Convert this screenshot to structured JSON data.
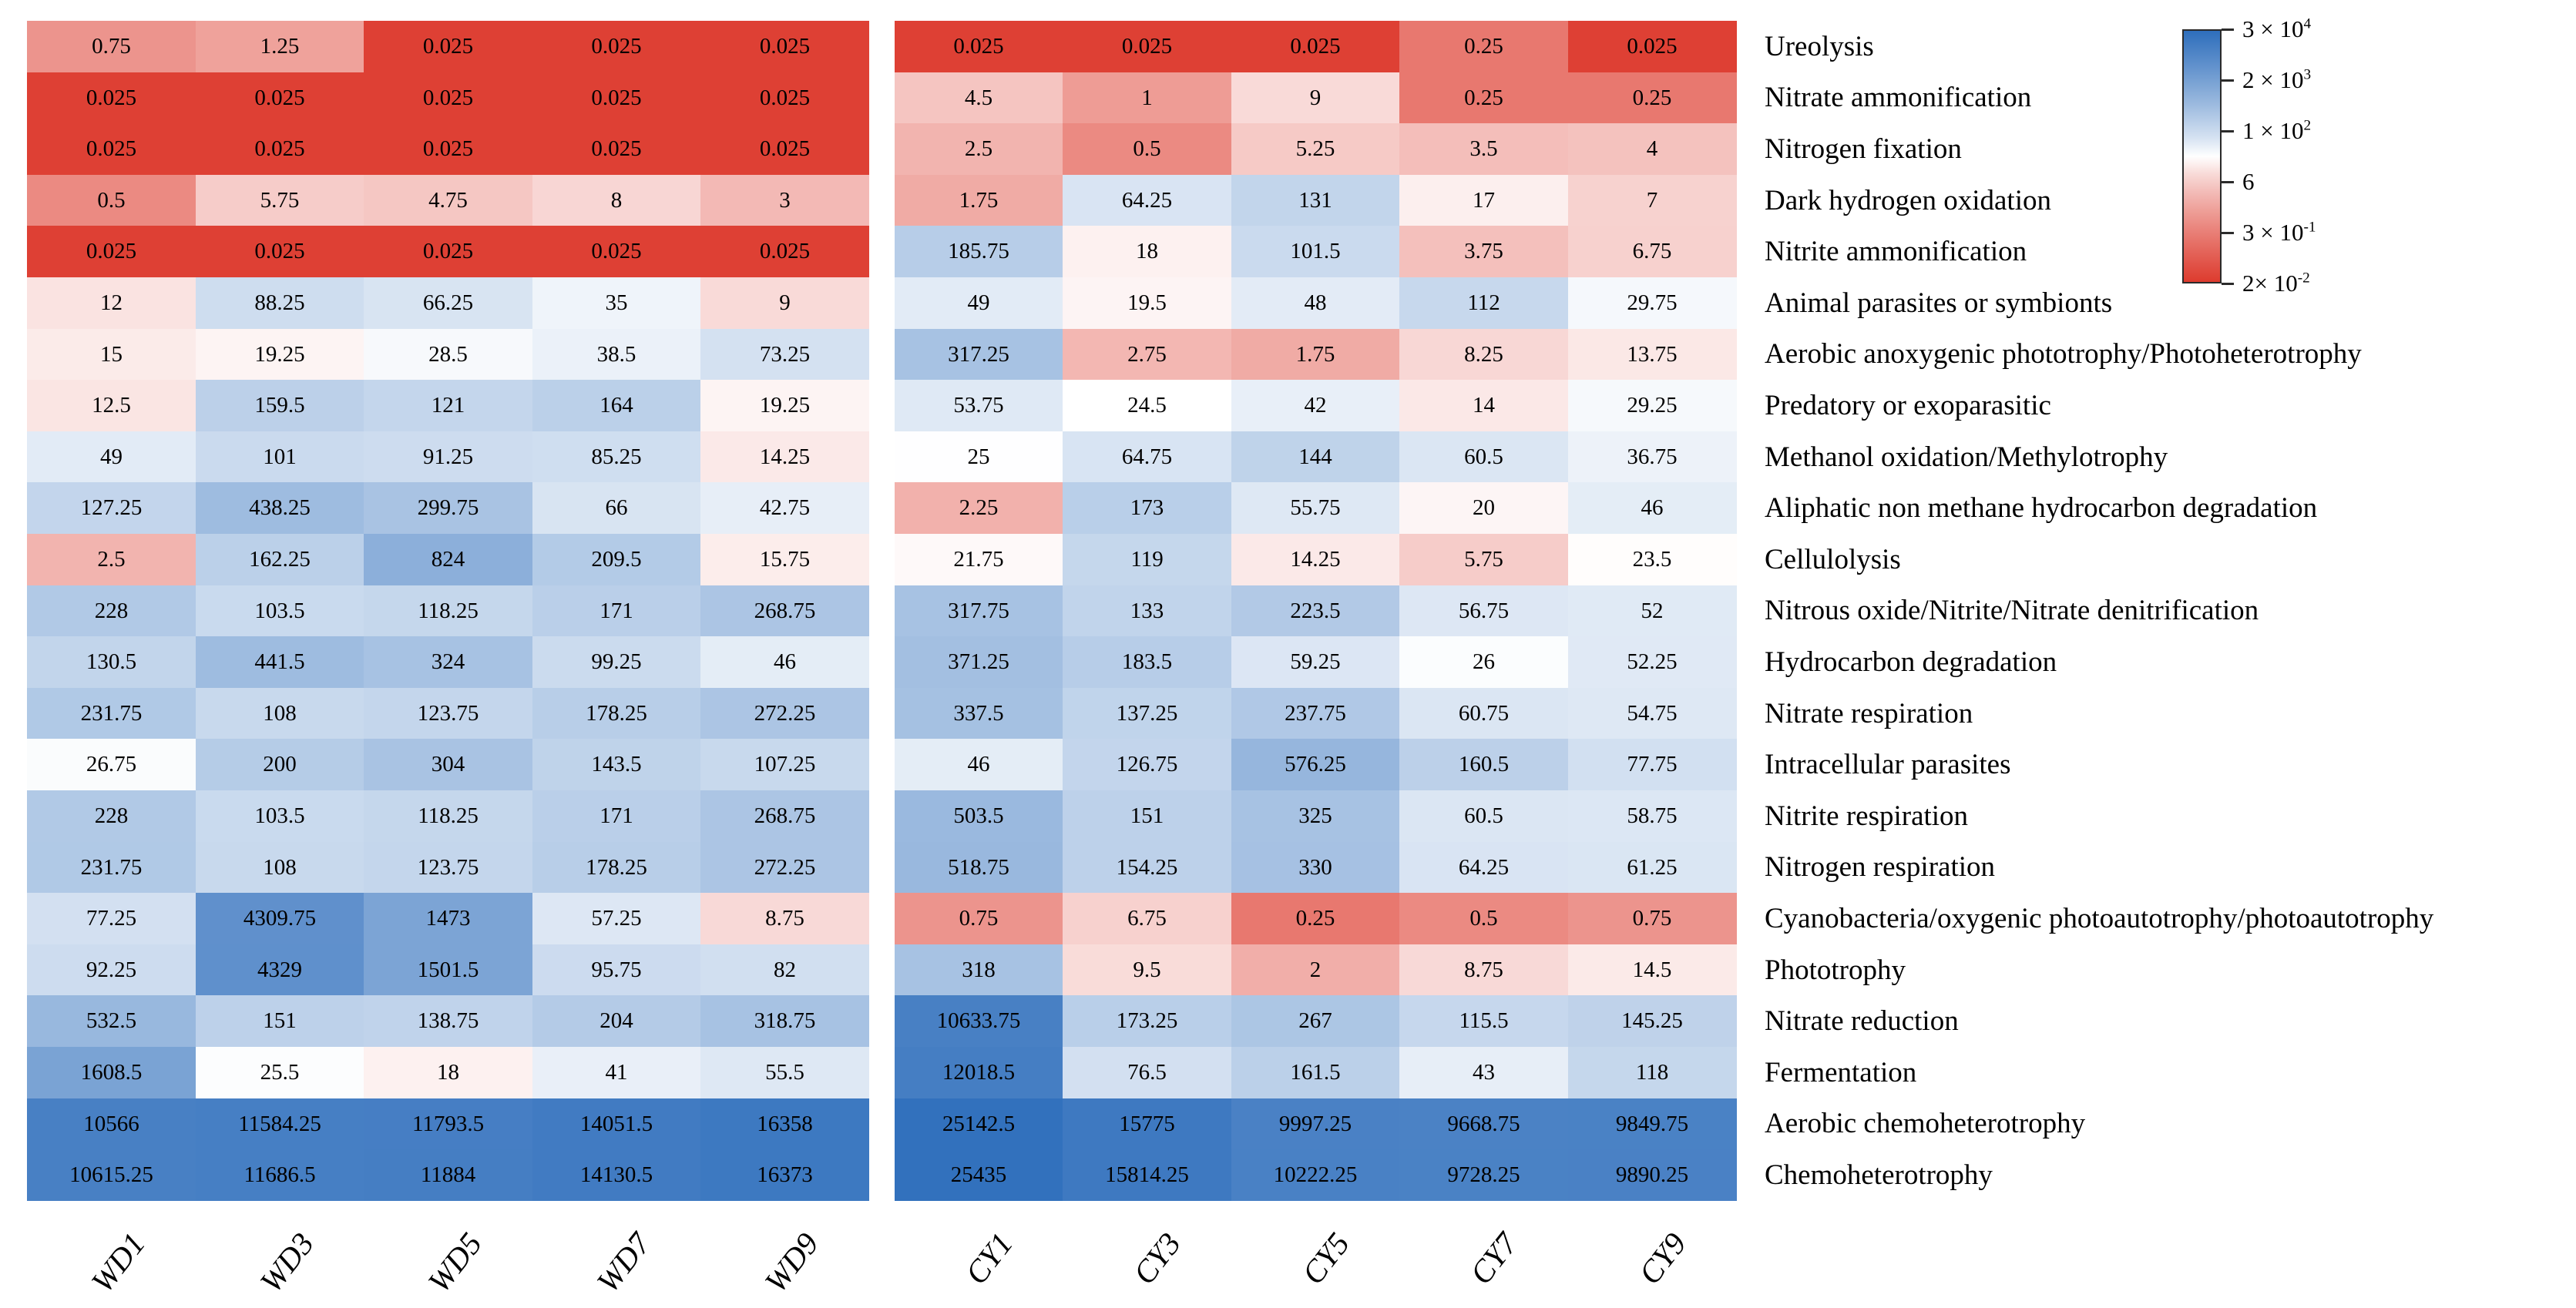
{
  "figure": {
    "background": "#ffffff"
  },
  "chart_data": {
    "type": "heatmap",
    "title": "",
    "xlabel": "",
    "ylabel": "",
    "columns": [
      "WD1",
      "WD3",
      "WD5",
      "WD7",
      "WD9",
      "CY1",
      "CY3",
      "CY5",
      "CY7",
      "CY9"
    ],
    "column_groups": [
      {
        "name": "WD",
        "columns": [
          "WD1",
          "WD3",
          "WD5",
          "WD7",
          "WD9"
        ]
      },
      {
        "name": "CY",
        "columns": [
          "CY1",
          "CY3",
          "CY5",
          "CY7",
          "CY9"
        ]
      }
    ],
    "rows": [
      {
        "label": "Ureolysis",
        "values": [
          0.75,
          1.25,
          0.025,
          0.025,
          0.025,
          0.025,
          0.025,
          0.025,
          0.25,
          0.025
        ]
      },
      {
        "label": "Nitrate ammonification",
        "values": [
          0.025,
          0.025,
          0.025,
          0.025,
          0.025,
          4.5,
          1,
          9,
          0.25,
          0.25
        ]
      },
      {
        "label": "Nitrogen fixation",
        "values": [
          0.025,
          0.025,
          0.025,
          0.025,
          0.025,
          2.5,
          0.5,
          5.25,
          3.5,
          4
        ]
      },
      {
        "label": "Dark hydrogen oxidation",
        "values": [
          0.5,
          5.75,
          4.75,
          8,
          3,
          1.75,
          64.25,
          131,
          17,
          7
        ]
      },
      {
        "label": "Nitrite ammonification",
        "values": [
          0.025,
          0.025,
          0.025,
          0.025,
          0.025,
          185.75,
          18,
          101.5,
          3.75,
          6.75
        ]
      },
      {
        "label": "Animal parasites or symbionts",
        "values": [
          12,
          88.25,
          66.25,
          35,
          9,
          49,
          19.5,
          48,
          112,
          29.75
        ]
      },
      {
        "label": "Aerobic anoxygenic phototrophy/Photoheterotrophy",
        "values": [
          15,
          19.25,
          28.5,
          38.5,
          73.25,
          317.25,
          2.75,
          1.75,
          8.25,
          13.75
        ]
      },
      {
        "label": "Predatory or exoparasitic",
        "values": [
          12.5,
          159.5,
          121,
          164,
          19.25,
          53.75,
          24.5,
          42,
          14,
          29.25
        ]
      },
      {
        "label": "Methanol oxidation/Methylotrophy",
        "values": [
          49,
          101,
          91.25,
          85.25,
          14.25,
          25,
          64.75,
          144,
          60.5,
          36.75
        ]
      },
      {
        "label": "Aliphatic non methane hydrocarbon degradation",
        "values": [
          127.25,
          438.25,
          299.75,
          66,
          42.75,
          2.25,
          173,
          55.75,
          20,
          46
        ]
      },
      {
        "label": "Cellulolysis",
        "values": [
          2.5,
          162.25,
          824,
          209.5,
          15.75,
          21.75,
          119,
          14.25,
          5.75,
          23.5
        ]
      },
      {
        "label": "Nitrous oxide/Nitrite/Nitrate denitrification",
        "values": [
          228,
          103.5,
          118.25,
          171,
          268.75,
          317.75,
          133,
          223.5,
          56.75,
          52
        ]
      },
      {
        "label": "Hydrocarbon degradation",
        "values": [
          130.5,
          441.5,
          324,
          99.25,
          46,
          371.25,
          183.5,
          59.25,
          26,
          52.25
        ]
      },
      {
        "label": "Nitrate respiration",
        "values": [
          231.75,
          108,
          123.75,
          178.25,
          272.25,
          337.5,
          137.25,
          237.75,
          60.75,
          54.75
        ]
      },
      {
        "label": "Intracellular parasites",
        "values": [
          26.75,
          200,
          304,
          143.5,
          107.25,
          46,
          126.75,
          576.25,
          160.5,
          77.75
        ]
      },
      {
        "label": "Nitrite respiration",
        "values": [
          228,
          103.5,
          118.25,
          171,
          268.75,
          503.5,
          151,
          325,
          60.5,
          58.75
        ]
      },
      {
        "label": "Nitrogen respiration",
        "values": [
          231.75,
          108,
          123.75,
          178.25,
          272.25,
          518.75,
          154.25,
          330,
          64.25,
          61.25
        ]
      },
      {
        "label": "Cyanobacteria/oxygenic photoautotrophy/photoautotrophy",
        "values": [
          77.25,
          4309.75,
          1473,
          57.25,
          8.75,
          0.75,
          6.75,
          0.25,
          0.5,
          0.75
        ]
      },
      {
        "label": "Phototrophy",
        "values": [
          92.25,
          4329,
          1501.5,
          95.75,
          82,
          318,
          9.5,
          2,
          8.75,
          14.5
        ]
      },
      {
        "label": "Nitrate reduction",
        "values": [
          532.5,
          151,
          138.75,
          204,
          318.75,
          10633.75,
          173.25,
          267,
          115.5,
          145.25
        ]
      },
      {
        "label": "Fermentation",
        "values": [
          1608.5,
          25.5,
          18,
          41,
          55.5,
          12018.5,
          76.5,
          161.5,
          43,
          118
        ]
      },
      {
        "label": "Aerobic chemoheterotrophy",
        "values": [
          10566,
          11584.25,
          11793.5,
          14051.5,
          16358,
          25142.5,
          15775,
          9997.25,
          9668.75,
          9849.75
        ]
      },
      {
        "label": "Chemoheterotrophy",
        "values": [
          10615.25,
          11686.5,
          11884,
          14130.5,
          16373,
          25435,
          15814.25,
          10222.25,
          9728.25,
          9890.25
        ]
      }
    ],
    "colorbar": {
      "scale": "log",
      "min": 0.02,
      "max": 30000,
      "white_center": 24.5,
      "legend_position": "top-right",
      "ticks": [
        {
          "text": "3 × 10",
          "sup": "4",
          "value": 30000
        },
        {
          "text": "2 × 10",
          "sup": "3",
          "value": 2000
        },
        {
          "text": "1 × 10",
          "sup": "2",
          "value": 100
        },
        {
          "text": "6",
          "sup": "",
          "value": 6
        },
        {
          "text": "3 × 10",
          "sup": "-1",
          "value": 0.3
        },
        {
          "text": "2× 10",
          "sup": "-2",
          "value": 0.02
        }
      ],
      "colors": {
        "high": "#2e6ebc",
        "mid": "#ffffff",
        "low": "#dd3b2e"
      }
    },
    "grid": false
  }
}
